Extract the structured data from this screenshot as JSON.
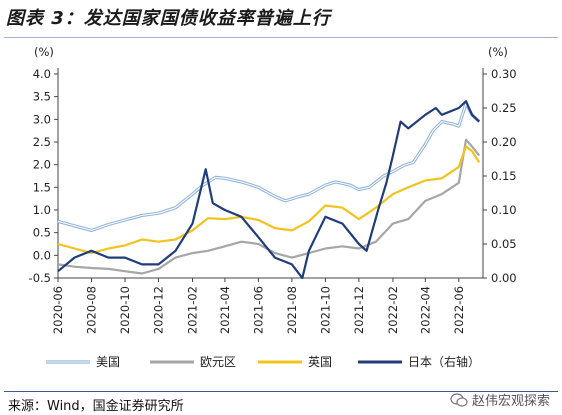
{
  "page_title": "图表 3：发达国家国债收益率普遍上行",
  "source": "来源：Wind，国金证券研究所",
  "watermark": "赵伟宏观探索",
  "chart_data": {
    "type": "line",
    "title": "发达国家国债收益率普遍上行",
    "left_unit": "(%)",
    "right_unit": "(%)",
    "left_axis": {
      "min": -0.5,
      "max": 4.0,
      "ticks": [
        "-0.5",
        "0.0",
        "0.5",
        "1.0",
        "1.5",
        "2.0",
        "2.5",
        "3.0",
        "3.5",
        "4.0"
      ]
    },
    "right_axis": {
      "min": 0.0,
      "max": 0.3,
      "ticks": [
        "0.00",
        "0.05",
        "0.10",
        "0.15",
        "0.20",
        "0.25",
        "0.30"
      ]
    },
    "x_ticks": [
      "2020-06",
      "2020-08",
      "2020-10",
      "2020-12",
      "2021-02",
      "2021-04",
      "2021-06",
      "2021-08",
      "2021-10",
      "2021-12",
      "2022-02",
      "2022-04",
      "2022-06"
    ],
    "x_range": [
      "2020-06-01",
      "2022-07-15"
    ],
    "grid": false,
    "legend_position": "bottom",
    "series": [
      {
        "name": "美国",
        "axis": "left",
        "color": "#8fb3dd",
        "style": "double",
        "x": [
          "2020-06-01",
          "2020-07-01",
          "2020-08-01",
          "2020-09-01",
          "2020-10-01",
          "2020-11-01",
          "2020-12-01",
          "2021-01-01",
          "2021-02-01",
          "2021-02-20",
          "2021-03-15",
          "2021-04-01",
          "2021-05-01",
          "2021-06-01",
          "2021-07-01",
          "2021-07-20",
          "2021-08-15",
          "2021-09-01",
          "2021-10-01",
          "2021-10-20",
          "2021-11-15",
          "2021-12-01",
          "2021-12-20",
          "2022-01-15",
          "2022-02-01",
          "2022-02-20",
          "2022-03-10",
          "2022-04-01",
          "2022-04-15",
          "2022-05-01",
          "2022-05-20",
          "2022-06-01",
          "2022-06-14",
          "2022-06-25",
          "2022-07-08"
        ],
        "y": [
          0.75,
          0.65,
          0.55,
          0.68,
          0.78,
          0.88,
          0.93,
          1.05,
          1.35,
          1.55,
          1.72,
          1.7,
          1.62,
          1.5,
          1.3,
          1.2,
          1.3,
          1.35,
          1.55,
          1.62,
          1.55,
          1.45,
          1.5,
          1.75,
          1.85,
          1.98,
          2.05,
          2.45,
          2.75,
          2.95,
          2.9,
          2.85,
          3.35,
          3.1,
          2.95
        ]
      },
      {
        "name": "欧元区",
        "axis": "left",
        "color": "#a6a6a6",
        "style": "solid",
        "x": [
          "2020-06-01",
          "2020-07-01",
          "2020-08-01",
          "2020-09-01",
          "2020-10-01",
          "2020-11-01",
          "2020-12-01",
          "2021-01-01",
          "2021-02-01",
          "2021-03-01",
          "2021-04-01",
          "2021-05-01",
          "2021-06-01",
          "2021-07-01",
          "2021-08-01",
          "2021-09-01",
          "2021-10-01",
          "2021-11-01",
          "2021-12-01",
          "2022-01-01",
          "2022-02-01",
          "2022-03-01",
          "2022-04-01",
          "2022-05-01",
          "2022-06-01",
          "2022-06-14",
          "2022-06-25",
          "2022-07-08"
        ],
        "y": [
          -0.2,
          -0.25,
          -0.28,
          -0.3,
          -0.35,
          -0.4,
          -0.3,
          -0.05,
          0.05,
          0.1,
          0.2,
          0.3,
          0.25,
          0.05,
          -0.05,
          0.05,
          0.15,
          0.2,
          0.15,
          0.3,
          0.7,
          0.8,
          1.2,
          1.35,
          1.6,
          2.55,
          2.4,
          2.2
        ]
      },
      {
        "name": "英国",
        "axis": "left",
        "color": "#f3c31d",
        "style": "solid",
        "x": [
          "2020-06-01",
          "2020-07-01",
          "2020-08-01",
          "2020-09-01",
          "2020-10-01",
          "2020-11-01",
          "2020-12-01",
          "2021-01-01",
          "2021-02-01",
          "2021-03-01",
          "2021-04-01",
          "2021-05-01",
          "2021-06-01",
          "2021-07-01",
          "2021-08-01",
          "2021-09-01",
          "2021-10-01",
          "2021-11-01",
          "2021-12-01",
          "2022-01-01",
          "2022-02-01",
          "2022-03-01",
          "2022-04-01",
          "2022-05-01",
          "2022-06-01",
          "2022-06-14",
          "2022-06-25",
          "2022-07-08"
        ],
        "y": [
          0.25,
          0.15,
          0.05,
          0.15,
          0.22,
          0.35,
          0.3,
          0.35,
          0.55,
          0.82,
          0.8,
          0.85,
          0.78,
          0.6,
          0.55,
          0.75,
          1.1,
          1.05,
          0.8,
          1.05,
          1.35,
          1.5,
          1.65,
          1.7,
          1.95,
          2.4,
          2.3,
          2.05
        ]
      },
      {
        "name": "日本（右轴）",
        "axis": "right",
        "color": "#1f3d7a",
        "style": "solid",
        "x": [
          "2020-06-01",
          "2020-07-01",
          "2020-08-01",
          "2020-09-01",
          "2020-10-01",
          "2020-11-01",
          "2020-12-01",
          "2021-01-01",
          "2021-02-01",
          "2021-02-25",
          "2021-03-10",
          "2021-04-01",
          "2021-05-01",
          "2021-06-01",
          "2021-07-01",
          "2021-08-01",
          "2021-08-20",
          "2021-09-01",
          "2021-10-01",
          "2021-11-01",
          "2021-12-01",
          "2021-12-15",
          "2022-01-05",
          "2022-01-20",
          "2022-02-01",
          "2022-02-15",
          "2022-03-01",
          "2022-04-01",
          "2022-04-20",
          "2022-05-01",
          "2022-06-01",
          "2022-06-14",
          "2022-06-25",
          "2022-07-08"
        ],
        "y": [
          0.01,
          0.03,
          0.04,
          0.03,
          0.03,
          0.02,
          0.02,
          0.04,
          0.08,
          0.16,
          0.11,
          0.1,
          0.09,
          0.06,
          0.03,
          0.02,
          0.0,
          0.04,
          0.09,
          0.08,
          0.05,
          0.04,
          0.1,
          0.14,
          0.18,
          0.23,
          0.22,
          0.24,
          0.25,
          0.24,
          0.25,
          0.26,
          0.24,
          0.23
        ]
      }
    ]
  }
}
